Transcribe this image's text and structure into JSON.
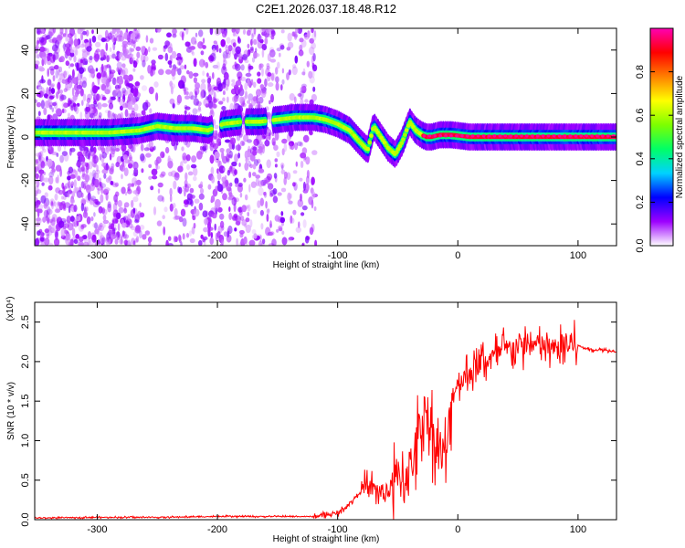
{
  "title": "C2E1.2026.037.18.48.R12",
  "chart_data": [
    {
      "type": "heatmap",
      "title": "C2E1.2026.037.18.48.R12",
      "xlabel": "Height of straight line (km)",
      "ylabel": "Frequency (Hz)",
      "xlim": [
        -352,
        132
      ],
      "ylim": [
        -50,
        50
      ],
      "x_ticks": [
        -300,
        -200,
        -100,
        0,
        100
      ],
      "y_ticks": [
        -40,
        -20,
        0,
        20,
        40
      ],
      "colorbar": {
        "label": "Normalized spectral amplitude",
        "range": [
          0,
          1
        ],
        "ticks": [
          "0.0",
          "0.2",
          "0.4",
          "0.6",
          "0.8"
        ],
        "colors": [
          "#ffffff",
          "#9d00ff",
          "#0000ff",
          "#00d2ff",
          "#00ff66",
          "#7dff00",
          "#ffff00",
          "#ff8000",
          "#ff0000",
          "#ff00b4"
        ]
      },
      "ridge": {
        "x": [
          -352,
          -320,
          -290,
          -265,
          -250,
          -235,
          -220,
          -208,
          -195,
          -180,
          -165,
          -150,
          -135,
          -120,
          -110,
          -100,
          -90,
          -82,
          -75,
          -70,
          -64,
          -58,
          -52,
          -46,
          -40,
          -35,
          -30,
          -26,
          -22,
          -15,
          -5,
          10,
          40,
          80,
          132
        ],
        "frequency": [
          2,
          2,
          2,
          3,
          5,
          4,
          4,
          3,
          6,
          7,
          7,
          8,
          9,
          9,
          8,
          6,
          3,
          -2,
          -6,
          5,
          0,
          -5,
          -8,
          -2,
          7,
          3,
          1,
          0,
          0,
          1,
          1,
          0,
          0,
          0,
          0
        ]
      }
    },
    {
      "type": "line",
      "xlabel": "Height of straight line (km)",
      "ylabel": "SNR (10 * v/v)",
      "multiplier": "(x10⁴)",
      "xlim": [
        -352,
        132
      ],
      "ylim": [
        0,
        2.75
      ],
      "x_ticks": [
        -300,
        -200,
        -100,
        0,
        100
      ],
      "y_ticks": [
        "0.0",
        "0.5",
        "1.0",
        "1.5",
        "2.0",
        "2.5"
      ],
      "line_color": "#ff0000",
      "series": [
        {
          "x": [
            -352,
            -300,
            -250,
            -200,
            -150,
            -120,
            -100,
            -90,
            -80,
            -70,
            -60,
            -50,
            -45,
            -40,
            -35,
            -30,
            -25,
            -20,
            -15,
            -10,
            -5,
            0,
            10,
            20,
            30,
            40,
            50,
            60,
            70,
            80,
            90,
            100,
            110,
            120,
            132
          ],
          "snr": [
            0.02,
            0.03,
            0.03,
            0.04,
            0.04,
            0.04,
            0.08,
            0.2,
            0.38,
            0.4,
            0.32,
            0.5,
            0.55,
            0.65,
            0.9,
            1.3,
            1.35,
            1.05,
            0.9,
            0.75,
            1.55,
            1.75,
            1.85,
            2.0,
            2.05,
            2.15,
            2.2,
            2.2,
            2.2,
            2.15,
            2.2,
            2.2,
            2.15,
            2.15,
            2.13
          ]
        }
      ]
    }
  ]
}
